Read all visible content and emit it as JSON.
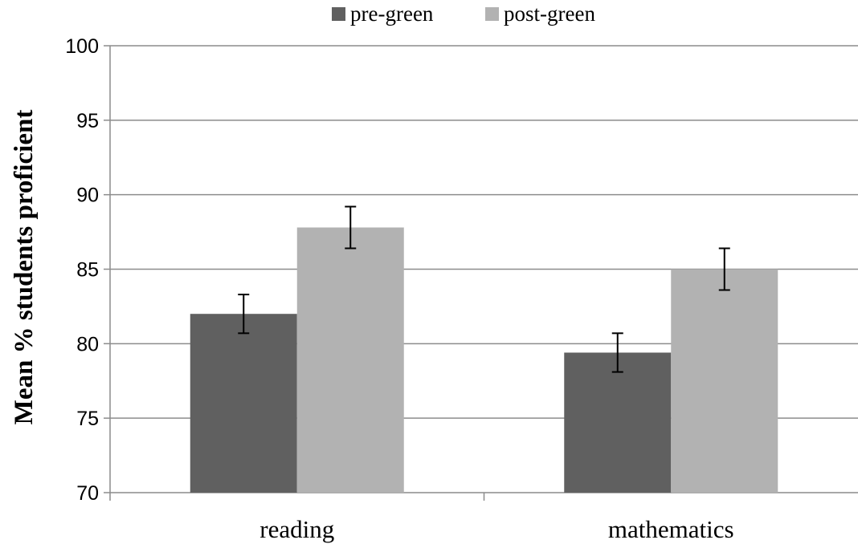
{
  "chart_data": {
    "type": "bar",
    "title": "",
    "xlabel": "",
    "ylabel": "Mean % students proficient",
    "categories": [
      "reading",
      "mathematics"
    ],
    "series": [
      {
        "name": "pre-green",
        "values": [
          82.0,
          79.4
        ],
        "error": [
          1.3,
          1.3
        ],
        "color": "#606060"
      },
      {
        "name": "post-green",
        "values": [
          87.8,
          85.0
        ],
        "error": [
          1.4,
          1.4
        ],
        "color": "#b2b2b2"
      }
    ],
    "ylim": [
      70,
      100
    ],
    "yticks": [
      70,
      75,
      80,
      85,
      90,
      95,
      100
    ],
    "grid": true,
    "legend_position": "top-center"
  }
}
